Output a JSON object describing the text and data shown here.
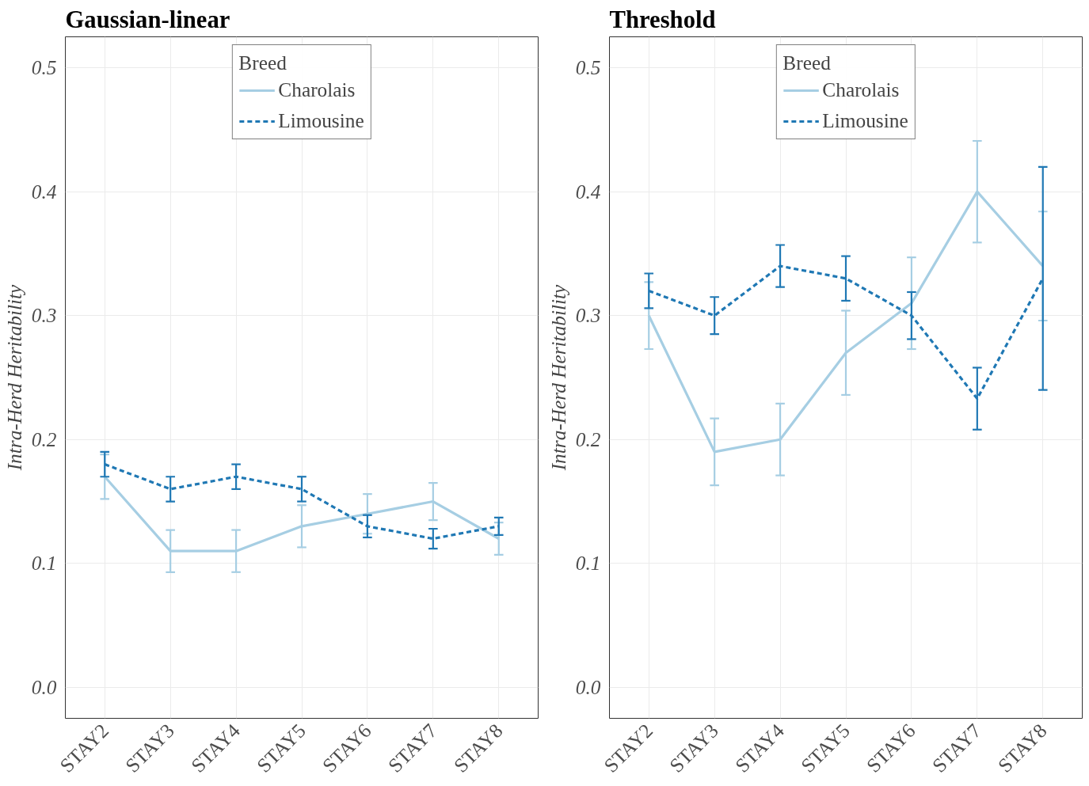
{
  "chart_data": [
    {
      "type": "line",
      "title": "Gaussian-linear",
      "ylabel": "Intra-Herd Heritability",
      "legend_title": "Breed",
      "categories": [
        "STAY2",
        "STAY3",
        "STAY4",
        "STAY5",
        "STAY6",
        "STAY7",
        "STAY8"
      ],
      "ylim": [
        -0.025,
        0.525
      ],
      "yticks": [
        {
          "value": 0,
          "label": "0.0"
        },
        0.1,
        0.2,
        0.3,
        0.4,
        0.5
      ],
      "grid": true,
      "legend": "top",
      "series": [
        {
          "name": "Charolais",
          "color": "#a6cee3",
          "line_style": "solid",
          "values": [
            0.17,
            0.11,
            0.11,
            0.13,
            0.14,
            0.15,
            0.12
          ],
          "errors": [
            0.018,
            0.017,
            0.017,
            0.017,
            0.016,
            0.015,
            0.013
          ]
        },
        {
          "name": "Limousine",
          "color": "#1f78b4",
          "line_style": "dashed",
          "values": [
            0.18,
            0.16,
            0.17,
            0.16,
            0.13,
            0.12,
            0.13
          ],
          "errors": [
            0.01,
            0.01,
            0.01,
            0.01,
            0.009,
            0.008,
            0.007
          ]
        }
      ]
    },
    {
      "type": "line",
      "title": "Threshold",
      "ylabel": "Intra-Herd Heritability",
      "legend_title": "Breed",
      "categories": [
        "STAY2",
        "STAY3",
        "STAY4",
        "STAY5",
        "STAY6",
        "STAY7",
        "STAY8"
      ],
      "ylim": [
        -0.025,
        0.525
      ],
      "yticks": [
        {
          "value": 0,
          "label": "0.0"
        },
        0.1,
        0.2,
        0.3,
        0.4,
        0.5
      ],
      "grid": true,
      "legend": "top",
      "series": [
        {
          "name": "Charolais",
          "color": "#a6cee3",
          "line_style": "solid",
          "values": [
            0.3,
            0.19,
            0.2,
            0.27,
            0.31,
            0.4,
            0.34
          ],
          "errors": [
            0.027,
            0.027,
            0.029,
            0.034,
            0.037,
            0.041,
            0.044
          ]
        },
        {
          "name": "Limousine",
          "color": "#1f78b4",
          "line_style": "dashed",
          "values": [
            0.32,
            0.3,
            0.34,
            0.33,
            0.3,
            0.233,
            0.33
          ],
          "errors": [
            0.014,
            0.015,
            0.017,
            0.018,
            0.019,
            0.025,
            0.09
          ]
        }
      ]
    }
  ]
}
